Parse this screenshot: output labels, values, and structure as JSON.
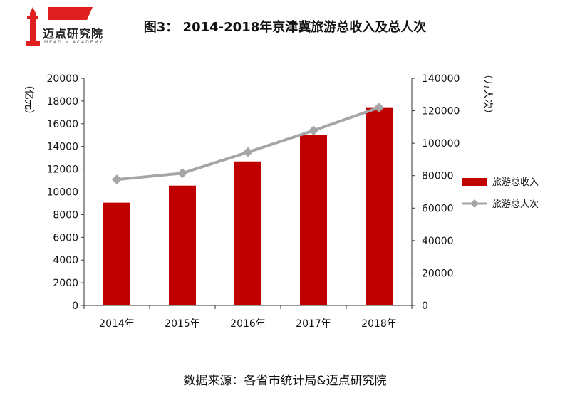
{
  "header": {
    "logo_text": "迈点研究院",
    "logo_sub": "MEADIN ACADEMY",
    "title": "图3： 2014-2018年京津冀旅游总收入及总人次"
  },
  "colors": {
    "bar": "#c00000",
    "line": "#a6a6a6",
    "logo_red": "#e02020"
  },
  "chart_data": {
    "type": "bar",
    "categories": [
      "2014年",
      "2015年",
      "2016年",
      "2017年",
      "2018年"
    ],
    "series": [
      {
        "name": "旅游总收入",
        "type": "bar",
        "axis": "left",
        "values": [
          9050,
          10550,
          12680,
          15020,
          17450
        ]
      },
      {
        "name": "旅游总人次",
        "type": "line",
        "axis": "right",
        "values": [
          77600,
          81500,
          94500,
          107800,
          122000
        ]
      }
    ],
    "ylabel": "（亿元）",
    "ylabel_right": "（万人次）",
    "ylim": [
      0,
      20000
    ],
    "ylim_right": [
      0,
      140000
    ],
    "yticks": [
      "0",
      "2000",
      "4000",
      "6000",
      "8000",
      "10000",
      "12000",
      "14000",
      "16000",
      "18000",
      "20000"
    ],
    "yticks_right": [
      "0",
      "20000",
      "40000",
      "60000",
      "80000",
      "100000",
      "120000",
      "140000"
    ],
    "legend": "right",
    "grid": false
  },
  "footer": {
    "source": "数据来源：各省市统计局&迈点研究院"
  }
}
